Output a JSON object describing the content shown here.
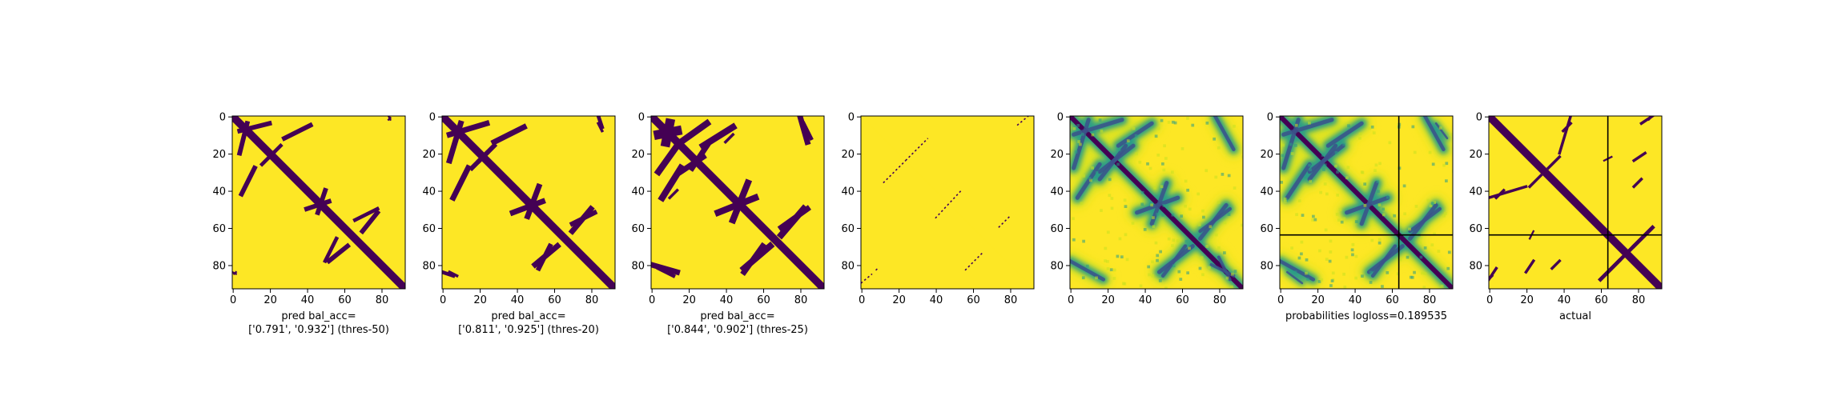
{
  "chart_data": [
    {
      "type": "heatmap",
      "render": "binary",
      "xlabel": [
        "pred bal_acc=",
        "['0.791', '0.932'] (thres-50)"
      ],
      "xticks": [
        0,
        20,
        40,
        60,
        80
      ],
      "yticks": [
        0,
        20,
        40,
        60,
        80
      ],
      "xlim": [
        0,
        93
      ],
      "ylim": [
        93,
        0
      ],
      "grid": false,
      "contact_bands": [
        {
          "x1": 4,
          "y1": 8,
          "x2": 20,
          "y2": 4,
          "width": 2.5
        },
        {
          "x1": 5,
          "y1": 42,
          "x2": 12,
          "y2": 28,
          "width": 2.5
        },
        {
          "x1": 16,
          "y1": 26,
          "x2": 22,
          "y2": 20,
          "width": 2
        },
        {
          "x1": 40,
          "y1": 50,
          "x2": 52,
          "y2": 46,
          "width": 2.5
        },
        {
          "x1": 66,
          "y1": 56,
          "x2": 78,
          "y2": 50,
          "width": 2
        },
        {
          "x1": 52,
          "y1": 78,
          "x2": 62,
          "y2": 70,
          "width": 2.5
        },
        {
          "x1": 84,
          "y1": 2,
          "x2": 85,
          "y2": 1,
          "width": 1
        },
        {
          "x1": 0,
          "y1": 84,
          "x2": 2,
          "y2": 85,
          "width": 1
        }
      ]
    },
    {
      "type": "heatmap",
      "render": "binary",
      "xlabel": [
        "pred bal_acc=",
        "['0.811', '0.925'] (thres-20)"
      ],
      "xticks": [
        0,
        20,
        40,
        60,
        80
      ],
      "yticks": [
        0,
        20,
        40,
        60,
        80
      ],
      "xlim": [
        0,
        93
      ],
      "ylim": [
        93,
        0
      ],
      "grid": false,
      "contact_bands": [
        {
          "x1": 4,
          "y1": 10,
          "x2": 24,
          "y2": 4,
          "width": 3
        },
        {
          "x1": 6,
          "y1": 44,
          "x2": 14,
          "y2": 28,
          "width": 3
        },
        {
          "x1": 16,
          "y1": 28,
          "x2": 24,
          "y2": 20,
          "width": 2.5
        },
        {
          "x1": 38,
          "y1": 52,
          "x2": 54,
          "y2": 46,
          "width": 3
        },
        {
          "x1": 70,
          "y1": 58,
          "x2": 82,
          "y2": 52,
          "width": 2.5
        },
        {
          "x1": 50,
          "y1": 80,
          "x2": 62,
          "y2": 70,
          "width": 3
        },
        {
          "x1": 84,
          "y1": 4,
          "x2": 86,
          "y2": 8,
          "width": 1.5
        },
        {
          "x1": 0,
          "y1": 84,
          "x2": 6,
          "y2": 86,
          "width": 2
        }
      ]
    },
    {
      "type": "heatmap",
      "render": "binary",
      "xlabel": [
        "pred bal_acc=",
        "['0.844', '0.902'] (thres-25)"
      ],
      "xticks": [
        0,
        20,
        40,
        60,
        80
      ],
      "yticks": [
        0,
        20,
        40,
        60,
        80
      ],
      "xlim": [
        0,
        93
      ],
      "ylim": [
        93,
        0
      ],
      "grid": false,
      "contact_bands": [
        {
          "x1": 4,
          "y1": 10,
          "x2": 14,
          "y2": 8,
          "width": 5
        },
        {
          "x1": 16,
          "y1": 14,
          "x2": 30,
          "y2": 4,
          "width": 3.5
        },
        {
          "x1": 6,
          "y1": 44,
          "x2": 16,
          "y2": 28,
          "width": 3.5
        },
        {
          "x1": 16,
          "y1": 30,
          "x2": 28,
          "y2": 22,
          "width": 3
        },
        {
          "x1": 36,
          "y1": 52,
          "x2": 56,
          "y2": 44,
          "width": 3.5
        },
        {
          "x1": 70,
          "y1": 60,
          "x2": 84,
          "y2": 50,
          "width": 3
        },
        {
          "x1": 50,
          "y1": 82,
          "x2": 64,
          "y2": 70,
          "width": 3.5
        },
        {
          "x1": 0,
          "y1": 80,
          "x2": 14,
          "y2": 84,
          "width": 3
        },
        {
          "x1": 82,
          "y1": 4,
          "x2": 86,
          "y2": 12,
          "width": 2
        },
        {
          "x1": 40,
          "y1": 14,
          "x2": 44,
          "y2": 10,
          "width": 1.5
        }
      ]
    },
    {
      "type": "heatmap",
      "render": "sparse",
      "xlabel": [],
      "xticks": [
        0,
        20,
        40,
        60,
        80
      ],
      "yticks": [
        0,
        20,
        40,
        60,
        80
      ],
      "xlim": [
        0,
        93
      ],
      "ylim": [
        93,
        0
      ],
      "grid": false,
      "contact_bands": [
        {
          "x1": 12,
          "y1": 36,
          "x2": 24,
          "y2": 24,
          "width": 0.7
        },
        {
          "x1": 24,
          "y1": 24,
          "x2": 36,
          "y2": 12,
          "width": 0.7
        },
        {
          "x1": 40,
          "y1": 55,
          "x2": 54,
          "y2": 40,
          "width": 0.7
        },
        {
          "x1": 56,
          "y1": 83,
          "x2": 66,
          "y2": 73,
          "width": 0.7
        },
        {
          "x1": 74,
          "y1": 60,
          "x2": 80,
          "y2": 54,
          "width": 0.7
        },
        {
          "x1": 84,
          "y1": 5,
          "x2": 90,
          "y2": 0,
          "width": 0.7
        },
        {
          "x1": 0,
          "y1": 90,
          "x2": 6,
          "y2": 85,
          "width": 0.7
        },
        {
          "x1": 8,
          "y1": 83,
          "x2": 9,
          "y2": 82,
          "width": 0.7
        }
      ]
    },
    {
      "type": "heatmap",
      "render": "prob",
      "xlabel": [],
      "xticks": [
        0,
        20,
        40,
        60,
        80
      ],
      "yticks": [
        0,
        20,
        40,
        60,
        80
      ],
      "xlim": [
        0,
        93
      ],
      "ylim": [
        93,
        0
      ],
      "grid": false,
      "contact_bands": [
        {
          "x1": 2,
          "y1": 10,
          "x2": 28,
          "y2": 2,
          "width": 4
        },
        {
          "x1": 4,
          "y1": 44,
          "x2": 16,
          "y2": 26,
          "width": 4
        },
        {
          "x1": 16,
          "y1": 30,
          "x2": 34,
          "y2": 16,
          "width": 4
        },
        {
          "x1": 36,
          "y1": 52,
          "x2": 58,
          "y2": 44,
          "width": 4
        },
        {
          "x1": 70,
          "y1": 62,
          "x2": 86,
          "y2": 50,
          "width": 3.5
        },
        {
          "x1": 48,
          "y1": 84,
          "x2": 66,
          "y2": 70,
          "width": 4
        },
        {
          "x1": 0,
          "y1": 78,
          "x2": 18,
          "y2": 88,
          "width": 3.5
        },
        {
          "x1": 76,
          "y1": 80,
          "x2": 88,
          "y2": 86,
          "width": 3
        }
      ]
    },
    {
      "type": "heatmap",
      "render": "prob",
      "xlabel": [
        "probabilities logloss=0.189535"
      ],
      "xticks": [
        0,
        20,
        40,
        60,
        80
      ],
      "yticks": [
        0,
        20,
        40,
        60,
        80
      ],
      "xlim": [
        0,
        93
      ],
      "ylim": [
        93,
        0
      ],
      "grid": false,
      "crosshair": 64,
      "contact_bands": [
        {
          "x1": 2,
          "y1": 10,
          "x2": 28,
          "y2": 2,
          "width": 4
        },
        {
          "x1": 4,
          "y1": 44,
          "x2": 16,
          "y2": 26,
          "width": 4
        },
        {
          "x1": 16,
          "y1": 30,
          "x2": 34,
          "y2": 16,
          "width": 4
        },
        {
          "x1": 36,
          "y1": 52,
          "x2": 58,
          "y2": 44,
          "width": 4
        },
        {
          "x1": 70,
          "y1": 62,
          "x2": 86,
          "y2": 50,
          "width": 3.5
        },
        {
          "x1": 48,
          "y1": 84,
          "x2": 66,
          "y2": 70,
          "width": 4
        },
        {
          "x1": 0,
          "y1": 78,
          "x2": 18,
          "y2": 88,
          "width": 3.5
        },
        {
          "x1": 84,
          "y1": 4,
          "x2": 90,
          "y2": 12,
          "width": 2
        }
      ]
    },
    {
      "type": "heatmap",
      "render": "binary",
      "xlabel": [
        "actual"
      ],
      "xticks": [
        0,
        20,
        40,
        60,
        80
      ],
      "yticks": [
        0,
        20,
        40,
        60,
        80
      ],
      "xlim": [
        0,
        93
      ],
      "ylim": [
        93,
        0
      ],
      "grid": false,
      "crosshair": 64,
      "contact_bands": [
        {
          "x1": 4,
          "y1": 44,
          "x2": 8,
          "y2": 40,
          "width": 1.5
        },
        {
          "x1": 38,
          "y1": 20,
          "x2": 44,
          "y2": 0,
          "width": 1.5
        },
        {
          "x1": 32,
          "y1": 28,
          "x2": 38,
          "y2": 22,
          "width": 1.5
        },
        {
          "x1": 76,
          "y1": 72,
          "x2": 88,
          "y2": 60,
          "width": 2
        },
        {
          "x1": 60,
          "y1": 88,
          "x2": 70,
          "y2": 78,
          "width": 2
        },
        {
          "x1": 0,
          "y1": 88,
          "x2": 4,
          "y2": 82,
          "width": 1.5
        },
        {
          "x1": 20,
          "y1": 84,
          "x2": 24,
          "y2": 78,
          "width": 1.5
        },
        {
          "x1": 34,
          "y1": 82,
          "x2": 38,
          "y2": 78,
          "width": 1.5
        },
        {
          "x1": 62,
          "y1": 24,
          "x2": 66,
          "y2": 22,
          "width": 1
        },
        {
          "x1": 86,
          "y1": 2,
          "x2": 88,
          "y2": 0,
          "width": 1
        }
      ]
    }
  ],
  "colors": {
    "background": "#fde725",
    "contact": "#440154",
    "line": "#000000",
    "prob_low": "#c8e020",
    "prob_mid": "#2a9c87",
    "prob_high": "#3b528b"
  }
}
